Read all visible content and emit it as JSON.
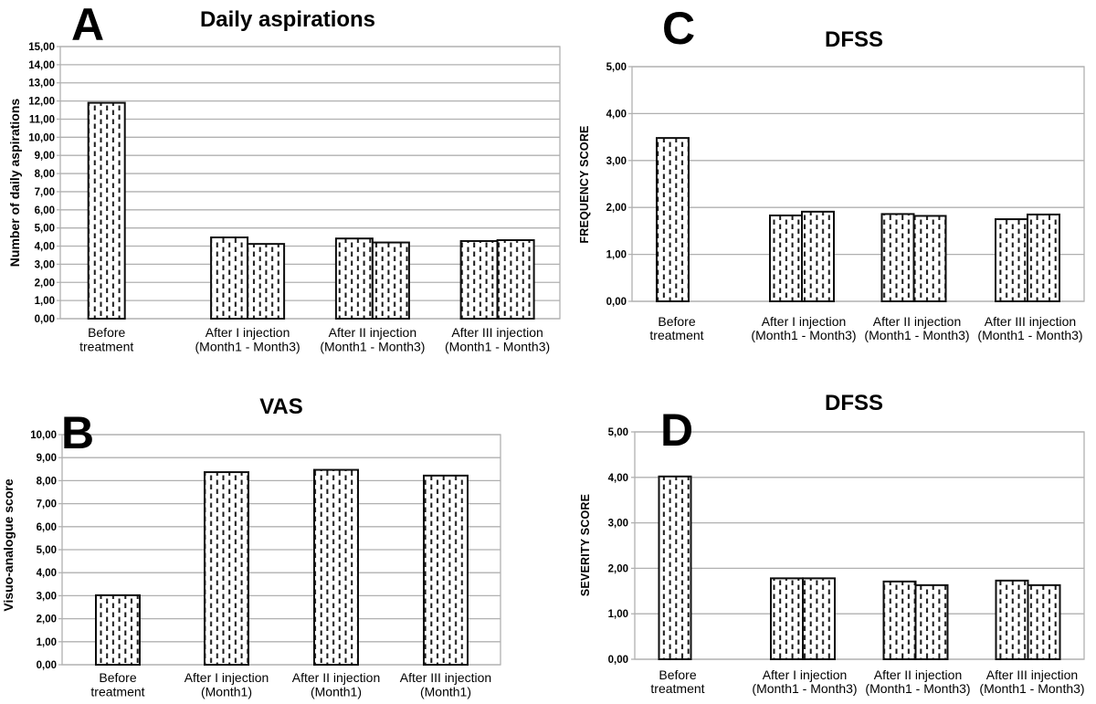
{
  "style": {
    "background": "#ffffff",
    "gridline_color": "#b0b0b0",
    "plot_border_color": "#b0b0b0",
    "bar_fill": "#ffffff",
    "bar_hatch_color": "#1a1a1a",
    "bar_stroke": "#0d0d0d",
    "text_color": "#000000"
  },
  "chart_data": [
    {
      "panel_letter": "A",
      "type": "bar",
      "title": "Daily aspirations",
      "ylabel": "Number of daily aspirations",
      "xlabel": "",
      "ylim": [
        0,
        15
      ],
      "ytick_step": 1,
      "ytick_label_format": "comma_decimal_2 (e.g. 15,00)",
      "grid": "horizontal",
      "legend": "none",
      "bar_texture": "white with black vertical dash hatch",
      "categories": [
        "Before treatment",
        "After I injection (Month1 - Month3)",
        "After II injection (Month1 - Month3)",
        "After III injection (Month1 - Month3)"
      ],
      "category_label_lines": [
        [
          "Before",
          "treatment"
        ],
        [
          "After I injection",
          "(Month1 - Month3)"
        ],
        [
          "After II injection",
          "(Month1 - Month3)"
        ],
        [
          "After III injection",
          "(Month1 - Month3)"
        ]
      ],
      "values_by_category": [
        [
          11.9
        ],
        [
          4.48,
          4.12
        ],
        [
          4.42,
          4.2
        ],
        [
          4.28,
          4.33
        ]
      ]
    },
    {
      "panel_letter": "B",
      "type": "bar",
      "title": "VAS",
      "ylabel": "Visuo-analogue score",
      "xlabel": "",
      "ylim": [
        0,
        10
      ],
      "ytick_step": 1,
      "ytick_label_format": "comma_decimal_2 (e.g. 10,00)",
      "grid": "horizontal",
      "legend": "none",
      "bar_texture": "white with black vertical dash hatch",
      "categories": [
        "Before treatment",
        "After I injection (Month1)",
        "After II injection (Month1)",
        "After III injection (Month1)"
      ],
      "category_label_lines": [
        [
          "Before",
          "treatment"
        ],
        [
          "After I injection",
          "(Month1)"
        ],
        [
          "After II injection",
          "(Month1)"
        ],
        [
          "After III injection",
          "(Month1)"
        ]
      ],
      "values_by_category": [
        [
          3.02
        ],
        [
          8.37
        ],
        [
          8.47
        ],
        [
          8.22
        ]
      ]
    },
    {
      "panel_letter": "C",
      "type": "bar",
      "title": "DFSS",
      "ylabel": "FREQUENCY SCORE",
      "xlabel": "",
      "ylim": [
        0,
        5
      ],
      "ytick_step": 1,
      "ytick_label_format": "comma_decimal_2 (e.g. 5,00)",
      "grid": "horizontal",
      "legend": "none",
      "bar_texture": "white with black vertical dash hatch",
      "categories": [
        "Before treatment",
        "After I injection (Month1 - Month3)",
        "After II injection (Month1 - Month3)",
        "After III injection (Month1 - Month3)"
      ],
      "category_label_lines": [
        [
          "Before",
          "treatment"
        ],
        [
          "After I injection",
          "(Month1 - Month3)"
        ],
        [
          "After II injection",
          "(Month1 - Month3)"
        ],
        [
          "After III injection",
          "(Month1 - Month3)"
        ]
      ],
      "values_by_category": [
        [
          3.48
        ],
        [
          1.83,
          1.91
        ],
        [
          1.86,
          1.82
        ],
        [
          1.75,
          1.85
        ]
      ]
    },
    {
      "panel_letter": "D",
      "type": "bar",
      "title": "DFSS",
      "ylabel": "SEVERITY SCORE",
      "xlabel": "",
      "ylim": [
        0,
        5
      ],
      "ytick_step": 1,
      "ytick_label_format": "comma_decimal_2 (e.g. 5,00)",
      "grid": "horizontal",
      "legend": "none",
      "bar_texture": "white with black vertical dash hatch",
      "categories": [
        "Before treatment",
        "After I injection (Month1 - Month3)",
        "After II injection (Month1 - Month3)",
        "After III injection (Month1 - Month3)"
      ],
      "category_label_lines": [
        [
          "Before",
          "treatment"
        ],
        [
          "After I injection",
          "(Month1 - Month3)"
        ],
        [
          "After II injection",
          "(Month1 - Month3)"
        ],
        [
          "After III injection",
          "(Month1 - Month3)"
        ]
      ],
      "values_by_category": [
        [
          4.02
        ],
        [
          1.78,
          1.78
        ],
        [
          1.71,
          1.63
        ],
        [
          1.73,
          1.63
        ]
      ]
    }
  ]
}
